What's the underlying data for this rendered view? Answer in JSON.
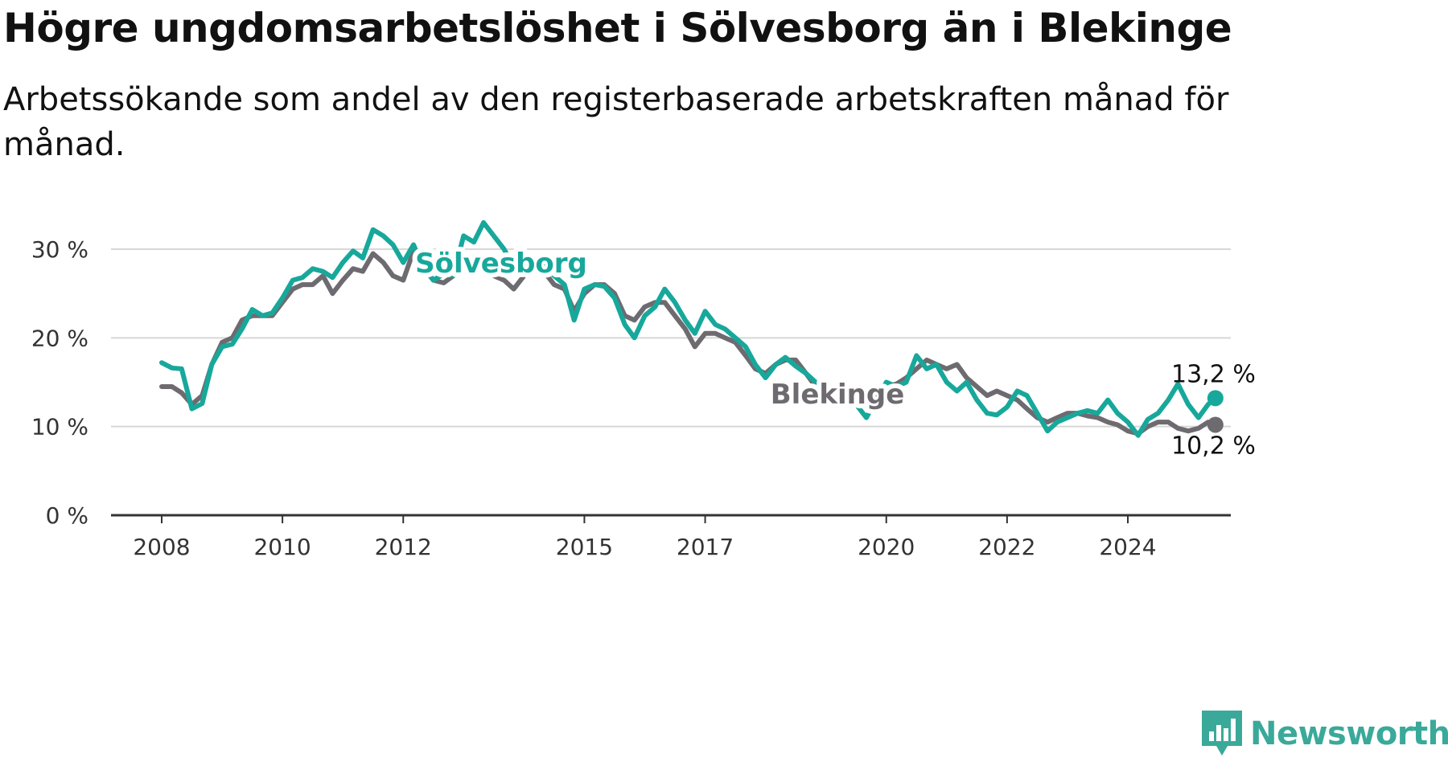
{
  "title": "Högre ungdomsarbetslöshet i Sölvesborg än i Blekinge",
  "subtitle": "Arbetssökande som andel av den registerbaserade arbetskraften månad för månad.",
  "brand": "Newsworthy",
  "colors": {
    "solvesborg": "#17a89b",
    "blekinge": "#6e6b70",
    "grid": "#d7d7d7",
    "axis": "#333333",
    "brand": "#3aa99a"
  },
  "chart_data": {
    "type": "line",
    "x_unit": "year",
    "xlim": [
      2007.4,
      2025.4
    ],
    "ylim": [
      0,
      30
    ],
    "y_ticks": [
      0,
      10,
      20,
      30
    ],
    "y_tick_labels": [
      "0 %",
      "10 %",
      "20 %",
      "30 %"
    ],
    "x_ticks": [
      2008,
      2010,
      2012,
      2015,
      2017,
      2020,
      2022,
      2024
    ],
    "x_tick_labels": [
      "2008",
      "2010",
      "2012",
      "2015",
      "2017",
      "2020",
      "2022",
      "2024"
    ],
    "grid": true,
    "series": [
      {
        "name": "Sölvesborg",
        "color": "#17a89b",
        "end_label": "13,2 %",
        "points": [
          [
            2008.0,
            17.2
          ],
          [
            2008.17,
            16.6
          ],
          [
            2008.33,
            16.5
          ],
          [
            2008.5,
            12.0
          ],
          [
            2008.67,
            12.6
          ],
          [
            2008.83,
            17.0
          ],
          [
            2009.0,
            19.0
          ],
          [
            2009.17,
            19.3
          ],
          [
            2009.33,
            21.0
          ],
          [
            2009.5,
            23.2
          ],
          [
            2009.67,
            22.5
          ],
          [
            2009.83,
            22.8
          ],
          [
            2010.0,
            24.5
          ],
          [
            2010.17,
            26.5
          ],
          [
            2010.33,
            26.8
          ],
          [
            2010.5,
            27.8
          ],
          [
            2010.67,
            27.5
          ],
          [
            2010.83,
            26.8
          ],
          [
            2011.0,
            28.5
          ],
          [
            2011.17,
            29.8
          ],
          [
            2011.33,
            29.0
          ],
          [
            2011.5,
            32.2
          ],
          [
            2011.67,
            31.5
          ],
          [
            2011.83,
            30.5
          ],
          [
            2012.0,
            28.5
          ],
          [
            2012.17,
            30.5
          ],
          [
            2012.33,
            28.0
          ],
          [
            2012.5,
            26.5
          ],
          [
            2012.67,
            27.2
          ],
          [
            2012.83,
            27.0
          ],
          [
            2013.0,
            31.5
          ],
          [
            2013.17,
            30.8
          ],
          [
            2013.33,
            33.0
          ],
          [
            2013.5,
            31.5
          ],
          [
            2013.67,
            30.0
          ],
          [
            2013.83,
            28.0
          ],
          [
            2014.0,
            28.5
          ],
          [
            2014.17,
            28.8
          ],
          [
            2014.33,
            28.0
          ],
          [
            2014.5,
            27.0
          ],
          [
            2014.67,
            26.0
          ],
          [
            2014.83,
            22.0
          ],
          [
            2015.0,
            25.5
          ],
          [
            2015.17,
            26.0
          ],
          [
            2015.33,
            25.8
          ],
          [
            2015.5,
            24.5
          ],
          [
            2015.67,
            21.5
          ],
          [
            2015.83,
            20.0
          ],
          [
            2016.0,
            22.5
          ],
          [
            2016.17,
            23.5
          ],
          [
            2016.33,
            25.5
          ],
          [
            2016.5,
            24.0
          ],
          [
            2016.67,
            22.0
          ],
          [
            2016.83,
            20.5
          ],
          [
            2017.0,
            23.0
          ],
          [
            2017.17,
            21.5
          ],
          [
            2017.33,
            21.0
          ],
          [
            2017.5,
            20.0
          ],
          [
            2017.67,
            19.0
          ],
          [
            2017.83,
            17.0
          ],
          [
            2018.0,
            15.5
          ],
          [
            2018.17,
            17.0
          ],
          [
            2018.33,
            17.8
          ],
          [
            2018.5,
            16.8
          ],
          [
            2018.67,
            16.0
          ],
          [
            2018.83,
            15.0
          ],
          [
            2019.0,
            13.0
          ],
          [
            2019.17,
            14.5
          ],
          [
            2019.33,
            13.5
          ],
          [
            2019.5,
            12.5
          ],
          [
            2019.67,
            11.0
          ],
          [
            2019.83,
            13.0
          ],
          [
            2020.0,
            15.0
          ],
          [
            2020.17,
            14.5
          ],
          [
            2020.33,
            15.0
          ],
          [
            2020.5,
            18.0
          ],
          [
            2020.67,
            16.5
          ],
          [
            2020.83,
            17.0
          ],
          [
            2021.0,
            15.0
          ],
          [
            2021.17,
            14.0
          ],
          [
            2021.33,
            15.0
          ],
          [
            2021.5,
            13.0
          ],
          [
            2021.67,
            11.5
          ],
          [
            2021.83,
            11.3
          ],
          [
            2022.0,
            12.2
          ],
          [
            2022.17,
            14.0
          ],
          [
            2022.33,
            13.5
          ],
          [
            2022.5,
            11.5
          ],
          [
            2022.67,
            9.5
          ],
          [
            2022.83,
            10.5
          ],
          [
            2023.0,
            11.0
          ],
          [
            2023.17,
            11.5
          ],
          [
            2023.33,
            11.8
          ],
          [
            2023.5,
            11.5
          ],
          [
            2023.67,
            13.0
          ],
          [
            2023.83,
            11.5
          ],
          [
            2024.0,
            10.5
          ],
          [
            2024.17,
            9.0
          ],
          [
            2024.33,
            10.8
          ],
          [
            2024.5,
            11.5
          ],
          [
            2024.67,
            13.0
          ],
          [
            2024.83,
            14.8
          ],
          [
            2025.0,
            12.5
          ],
          [
            2025.17,
            11.0
          ],
          [
            2025.33,
            12.5
          ],
          [
            2025.45,
            13.2
          ]
        ]
      },
      {
        "name": "Blekinge",
        "color": "#6e6b70",
        "end_label": "10,2 %",
        "points": [
          [
            2008.0,
            14.5
          ],
          [
            2008.17,
            14.5
          ],
          [
            2008.33,
            13.8
          ],
          [
            2008.5,
            12.5
          ],
          [
            2008.67,
            13.5
          ],
          [
            2008.83,
            17.0
          ],
          [
            2009.0,
            19.5
          ],
          [
            2009.17,
            20.0
          ],
          [
            2009.33,
            22.0
          ],
          [
            2009.5,
            22.5
          ],
          [
            2009.67,
            22.5
          ],
          [
            2009.83,
            22.5
          ],
          [
            2010.0,
            24.0
          ],
          [
            2010.17,
            25.5
          ],
          [
            2010.33,
            26.0
          ],
          [
            2010.5,
            26.0
          ],
          [
            2010.67,
            27.0
          ],
          [
            2010.83,
            25.0
          ],
          [
            2011.0,
            26.5
          ],
          [
            2011.17,
            27.8
          ],
          [
            2011.33,
            27.5
          ],
          [
            2011.5,
            29.5
          ],
          [
            2011.67,
            28.5
          ],
          [
            2011.83,
            27.0
          ],
          [
            2012.0,
            26.5
          ],
          [
            2012.17,
            29.8
          ],
          [
            2012.33,
            28.0
          ],
          [
            2012.5,
            26.5
          ],
          [
            2012.67,
            26.2
          ],
          [
            2012.83,
            27.0
          ],
          [
            2013.0,
            29.0
          ],
          [
            2013.17,
            28.5
          ],
          [
            2013.33,
            28.8
          ],
          [
            2013.5,
            27.0
          ],
          [
            2013.67,
            26.5
          ],
          [
            2013.83,
            25.5
          ],
          [
            2014.0,
            27.0
          ],
          [
            2014.17,
            28.0
          ],
          [
            2014.33,
            27.5
          ],
          [
            2014.5,
            26.0
          ],
          [
            2014.67,
            25.5
          ],
          [
            2014.83,
            23.0
          ],
          [
            2015.0,
            25.0
          ],
          [
            2015.17,
            26.0
          ],
          [
            2015.33,
            26.0
          ],
          [
            2015.5,
            25.0
          ],
          [
            2015.67,
            22.5
          ],
          [
            2015.83,
            22.0
          ],
          [
            2016.0,
            23.5
          ],
          [
            2016.17,
            24.0
          ],
          [
            2016.33,
            24.0
          ],
          [
            2016.5,
            22.5
          ],
          [
            2016.67,
            21.0
          ],
          [
            2016.83,
            19.0
          ],
          [
            2017.0,
            20.5
          ],
          [
            2017.17,
            20.5
          ],
          [
            2017.33,
            20.0
          ],
          [
            2017.5,
            19.5
          ],
          [
            2017.67,
            18.0
          ],
          [
            2017.83,
            16.5
          ],
          [
            2018.0,
            16.0
          ],
          [
            2018.17,
            17.0
          ],
          [
            2018.33,
            17.5
          ],
          [
            2018.5,
            17.5
          ],
          [
            2018.67,
            16.0
          ],
          [
            2018.83,
            14.5
          ],
          [
            2019.0,
            14.0
          ],
          [
            2019.17,
            14.5
          ],
          [
            2019.33,
            14.0
          ],
          [
            2019.5,
            13.5
          ],
          [
            2019.67,
            13.0
          ],
          [
            2019.83,
            14.0
          ],
          [
            2020.0,
            14.5
          ],
          [
            2020.17,
            14.8
          ],
          [
            2020.33,
            15.5
          ],
          [
            2020.5,
            16.5
          ],
          [
            2020.67,
            17.5
          ],
          [
            2020.83,
            17.0
          ],
          [
            2021.0,
            16.5
          ],
          [
            2021.17,
            17.0
          ],
          [
            2021.33,
            15.5
          ],
          [
            2021.5,
            14.5
          ],
          [
            2021.67,
            13.5
          ],
          [
            2021.83,
            14.0
          ],
          [
            2022.0,
            13.5
          ],
          [
            2022.17,
            13.0
          ],
          [
            2022.33,
            12.0
          ],
          [
            2022.5,
            11.0
          ],
          [
            2022.67,
            10.5
          ],
          [
            2022.83,
            11.0
          ],
          [
            2023.0,
            11.5
          ],
          [
            2023.17,
            11.5
          ],
          [
            2023.33,
            11.2
          ],
          [
            2023.5,
            11.0
          ],
          [
            2023.67,
            10.5
          ],
          [
            2023.83,
            10.2
          ],
          [
            2024.0,
            9.5
          ],
          [
            2024.17,
            9.2
          ],
          [
            2024.33,
            10.0
          ],
          [
            2024.5,
            10.5
          ],
          [
            2024.67,
            10.5
          ],
          [
            2024.83,
            9.8
          ],
          [
            2025.0,
            9.5
          ],
          [
            2025.17,
            9.8
          ],
          [
            2025.33,
            10.5
          ],
          [
            2025.45,
            10.2
          ]
        ]
      }
    ]
  }
}
